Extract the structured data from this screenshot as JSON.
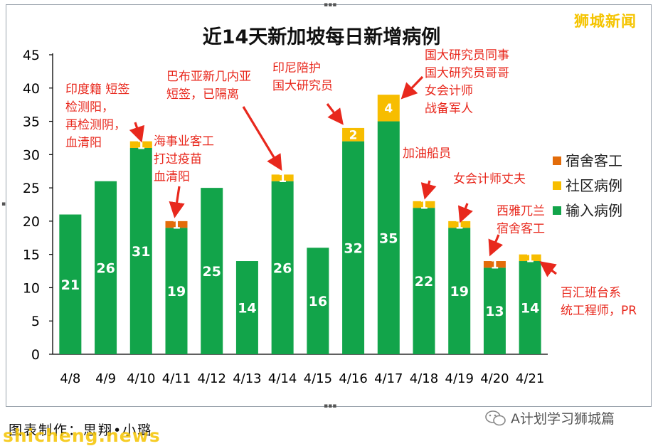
{
  "brand_mark": "狮城新闻",
  "credit": "图表制作：思翔•小璐",
  "watermark_site": "shicheng.news",
  "wechat_account": "A计划学习狮城篇",
  "colors": {
    "imported": "#12a44a",
    "community": "#f7bd00",
    "dorm": "#e36c0a",
    "annotation": "#e8281d",
    "bar_label": "#ffffff"
  },
  "chart_data": {
    "type": "bar",
    "stacked": true,
    "title": "近14天新加坡每日新增病例",
    "categories": [
      "4/8",
      "4/9",
      "4/10",
      "4/11",
      "4/12",
      "4/13",
      "4/14",
      "4/15",
      "4/16",
      "4/17",
      "4/18",
      "4/19",
      "4/20",
      "4/21"
    ],
    "series": [
      {
        "name": "输入病例",
        "color": "#12a44a",
        "values": [
          21,
          26,
          31,
          19,
          25,
          14,
          26,
          16,
          32,
          35,
          22,
          19,
          13,
          14
        ]
      },
      {
        "name": "社区病例",
        "color": "#f7bd00",
        "values": [
          0,
          0,
          1,
          0,
          0,
          0,
          1,
          0,
          2,
          4,
          1,
          1,
          0,
          1
        ]
      },
      {
        "name": "宿舍客工",
        "color": "#e36c0a",
        "values": [
          0,
          0,
          0,
          1,
          0,
          0,
          0,
          0,
          0,
          0,
          0,
          0,
          1,
          0
        ]
      }
    ],
    "segment_labels": {
      "输入病例": [
        "21",
        "26",
        "31",
        "19",
        "25",
        "14",
        "26",
        "16",
        "32",
        "35",
        "22",
        "19",
        "13",
        "14"
      ],
      "社区病例": [
        "",
        "",
        "1",
        "",
        "",
        "",
        "1",
        "",
        "2",
        "4",
        "1",
        "1",
        "",
        "1"
      ],
      "宿舍客工": [
        "",
        "",
        "",
        "1",
        "",
        "",
        "",
        "",
        "",
        "",
        "",
        "",
        "1",
        ""
      ]
    },
    "legend_order": [
      "宿舍客工",
      "社区病例",
      "输入病例"
    ],
    "legend_position": "right",
    "ylim": [
      0,
      45
    ],
    "yticks": [
      "0",
      "5",
      "10",
      "15",
      "20",
      "25",
      "30",
      "35",
      "40",
      "45"
    ],
    "xlabel": "",
    "ylabel": "",
    "grid": false,
    "annotations": [
      {
        "category": "4/10",
        "lines": [
          "印度籍 短签",
          "检测阳，",
          "再检测阴，",
          "血清阳"
        ]
      },
      {
        "category": "4/11",
        "lines": [
          "海事业客工",
          "打过疫苗",
          "血清阳"
        ]
      },
      {
        "category": "4/14",
        "lines": [
          "巴布亚新几内亚",
          "短签，已隔离"
        ]
      },
      {
        "category": "4/16",
        "lines": [
          "印尼陪护",
          "国大研究员"
        ]
      },
      {
        "category": "4/17",
        "lines": [
          "国大研究员同事",
          "国大研究员哥哥",
          "女会计师",
          "战备军人"
        ]
      },
      {
        "category": "4/18",
        "lines": [
          "加油船员"
        ]
      },
      {
        "category": "4/19",
        "lines": [
          "女会计师丈夫"
        ]
      },
      {
        "category": "4/20",
        "lines": [
          "西雅兀兰",
          "宿舍客工"
        ]
      },
      {
        "category": "4/21",
        "lines": [
          "百汇班台系",
          "统工程师，PR"
        ]
      }
    ]
  }
}
